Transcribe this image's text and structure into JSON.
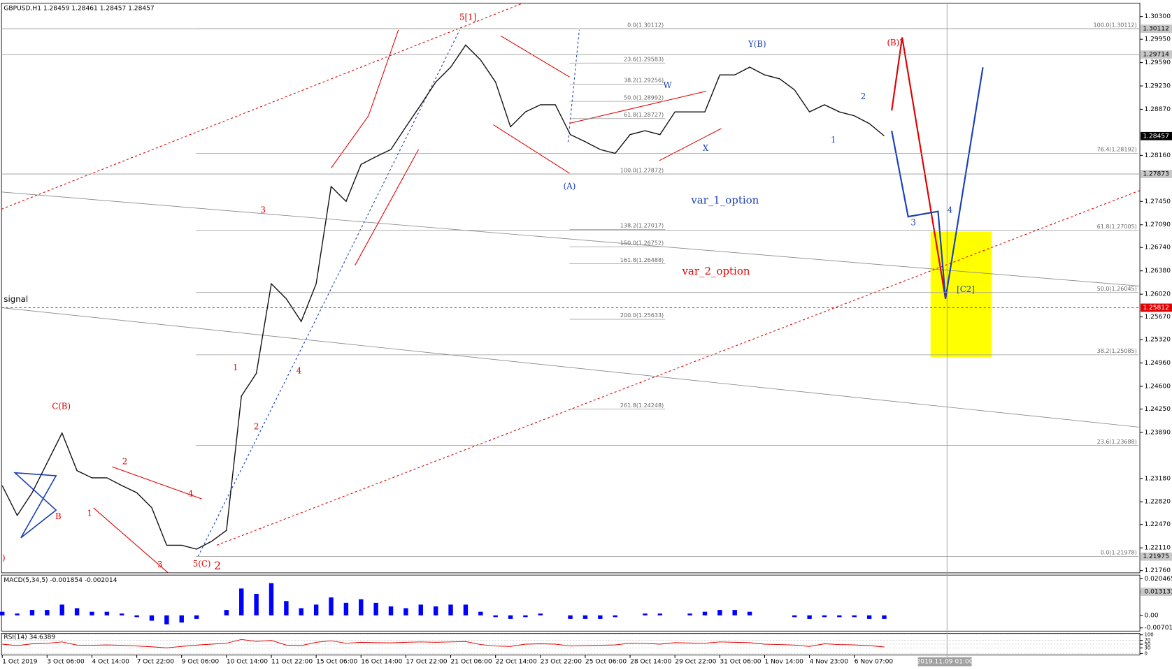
{
  "title": "GBPUSD,H1  1.28459 1.28461 1.28457 1.28457",
  "signal": "signal",
  "crosshair_time": "2019.11.09 01:00",
  "chart_data": [
    {
      "type": "line",
      "categories": [
        "1 Oct 2019",
        null,
        null,
        "3 Oct 06:00",
        null,
        null,
        "4 Oct 14:00",
        null,
        null,
        "7 Oct 22:00",
        null,
        null,
        "9 Oct 06:00",
        null,
        null,
        "10 Oct 14:00",
        null,
        null,
        "11 Oct 22:00",
        null,
        null,
        "15 Oct 06:00",
        null,
        null,
        "16 Oct 14:00",
        null,
        null,
        "17 Oct 22:00",
        null,
        null,
        "21 Oct 06:00",
        null,
        null,
        "22 Oct 14:00",
        null,
        null,
        "23 Oct 22:00",
        null,
        null,
        "25 Oct 06:00",
        null,
        null,
        "28 Oct 14:00",
        null,
        null,
        "29 Oct 22:00",
        null,
        null,
        "31 Oct 06:00",
        null,
        null,
        "1 Nov 14:00",
        null,
        null,
        "4 Nov 23:00",
        null,
        null,
        "6 Nov 07:00",
        null,
        null
      ],
      "series": [
        {
          "color": "#111111",
          "values": [
            1.2307,
            1.2261,
            1.2296,
            1.2342,
            1.2388,
            1.233,
            1.2319,
            1.2319,
            1.2307,
            1.2296,
            1.2273,
            1.2215,
            1.2215,
            1.2209,
            1.2221,
            1.2238,
            1.2445,
            1.248,
            1.2618,
            1.2595,
            1.256,
            1.2618,
            1.2768,
            1.2745,
            1.2802,
            1.2814,
            1.2825,
            1.286,
            1.2894,
            1.2929,
            1.2952,
            1.2986,
            1.2963,
            1.2929,
            1.286,
            1.2883,
            1.2894,
            1.2894,
            1.2848,
            1.2837,
            1.2825,
            1.2819,
            1.2848,
            1.2854,
            1.2848,
            1.2883,
            1.2883,
            1.2883,
            1.294,
            1.294,
            1.2952,
            1.294,
            1.2934,
            1.2917,
            1.2883,
            1.2894,
            1.2883,
            1.2877,
            1.2865,
            1.2846
          ]
        }
      ],
      "ylim": [
        1.21725,
        1.30496
      ],
      "yticks": [
        {
          "value": 1.303,
          "label": "1.30300"
        },
        {
          "value": 1.2995,
          "label": "1.29950"
        },
        {
          "value": 1.2959,
          "label": "1.29590"
        },
        {
          "value": 1.2923,
          "label": "1.29230"
        },
        {
          "value": 1.2887,
          "label": "1.28870"
        },
        {
          "value": 1.2816,
          "label": "1.28160"
        },
        {
          "value": 1.2745,
          "label": "1.27450"
        },
        {
          "value": 1.2709,
          "label": "1.27090"
        },
        {
          "value": 1.2674,
          "label": "1.26740"
        },
        {
          "value": 1.2638,
          "label": "1.26380"
        },
        {
          "value": 1.2602,
          "label": "1.26020"
        },
        {
          "value": 1.2567,
          "label": "1.25670"
        },
        {
          "value": 1.2532,
          "label": "1.25320"
        },
        {
          "value": 1.2496,
          "label": "1.24960"
        },
        {
          "value": 1.246,
          "label": "1.24600"
        },
        {
          "value": 1.2425,
          "label": "1.24250"
        },
        {
          "value": 1.2389,
          "label": "1.23890"
        },
        {
          "value": 1.2318,
          "label": "1.23180"
        },
        {
          "value": 1.2282,
          "label": "1.22820"
        },
        {
          "value": 1.2247,
          "label": "1.22470"
        },
        {
          "value": 1.2211,
          "label": "1.22110"
        },
        {
          "value": 1.2176,
          "label": "1.21760"
        }
      ],
      "price_markers": [
        1.30112,
        1.29714,
        1.28457,
        1.27873,
        1.25812,
        1.21975
      ],
      "fib_left": [
        {
          "label": "0.0(1.30112)",
          "price": 1.30112
        },
        {
          "label": "23.6(1.29583)",
          "price": 1.29583
        },
        {
          "label": "38.2(1.29256)",
          "price": 1.29256
        },
        {
          "label": "50.0(1.28992)",
          "price": 1.28992
        },
        {
          "label": "61.8(1.28727)",
          "price": 1.28727
        },
        {
          "label": "100.0(1.27872)",
          "price": 1.27872
        },
        {
          "label": "138.2(1.27017)",
          "price": 1.27017
        },
        {
          "label": "150.0(1.26752)",
          "price": 1.26752
        },
        {
          "label": "161.8(1.26488)",
          "price": 1.26488
        },
        {
          "label": "200.0(1.25633)",
          "price": 1.25633
        },
        {
          "label": "261.8(1.24248)",
          "price": 1.24248
        }
      ],
      "fib_right": [
        {
          "label": "100.0(1.30112)",
          "price": 1.30112
        },
        {
          "label": "76.4(1.28192)",
          "price": 1.28192
        },
        {
          "label": "61.8(1.27005)",
          "price": 1.27005
        },
        {
          "label": "50.0(1.26045)",
          "price": 1.26045
        },
        {
          "label": "38.2(1.25085)",
          "price": 1.25085
        },
        {
          "label": "23.6(1.23688)",
          "price": 1.23688
        },
        {
          "label": "0.0(1.21978)",
          "price": 1.21978
        }
      ],
      "annotations": [
        {
          "text": "5[1]",
          "color": "#e00000"
        },
        {
          "text": "(B)?",
          "color": "#e00000"
        },
        {
          "text": "Y(B)",
          "color": "#1a3fb5"
        },
        {
          "text": "W",
          "color": "#1a3fb5"
        },
        {
          "text": "X",
          "color": "#1a3fb5"
        },
        {
          "text": "(A)",
          "color": "#1a3fb5"
        },
        {
          "text": "1",
          "color": "#1a3fb5"
        },
        {
          "text": "2",
          "color": "#1a3fb5"
        },
        {
          "text": "3",
          "color": "#1a3fb5"
        },
        {
          "text": "4",
          "color": "#1a3fb5"
        },
        {
          "text": "[C2]",
          "color": "#1a3fb5"
        },
        {
          "text": "var_1_option",
          "color": "#1a3fb5"
        },
        {
          "text": "var_2_option",
          "color": "#e00000"
        },
        {
          "text": "3",
          "color": "#e00000"
        },
        {
          "text": "4",
          "color": "#e00000"
        },
        {
          "text": "1",
          "color": "#e00000"
        },
        {
          "text": "2",
          "color": "#e00000"
        },
        {
          "text": "C(B)",
          "color": "#e00000"
        },
        {
          "text": "B",
          "color": "#e00000"
        },
        {
          "text": "1",
          "color": "#e00000"
        },
        {
          "text": "2",
          "color": "#e00000"
        },
        {
          "text": "4",
          "color": "#e00000"
        },
        {
          "text": "3",
          "color": "#e00000"
        },
        {
          "text": "5(C)",
          "color": "#e00000"
        },
        {
          "text": "2",
          "color": "#e00000"
        },
        {
          "text": ")",
          "color": "#e00000"
        }
      ]
    },
    {
      "type": "bar",
      "title": "MACD(5,34,5) -0.001854 -0.002014",
      "color": "#0000ff",
      "values": [
        0.002,
        0.001,
        0.003,
        0.003,
        0.006,
        0.004,
        0.002,
        0.002,
        0.001,
        -0.001,
        -0.003,
        -0.005,
        -0.004,
        -0.002,
        0,
        0.003,
        0.015,
        0.012,
        0.018,
        0.008,
        0.004,
        0.006,
        0.01,
        0.007,
        0.009,
        0.007,
        0.005,
        0.004,
        0.006,
        0.005,
        0.006,
        0.006,
        0.002,
        -0.001,
        -0.002,
        -0.001,
        0.001,
        0,
        -0.002,
        -0.002,
        -0.002,
        -0.001,
        0,
        0.001,
        0.001,
        0,
        0.001,
        0.002,
        0.003,
        0.003,
        0.002,
        0,
        0,
        -0.001,
        -0.002,
        -0.001,
        -0.001,
        -0.001,
        -0.002,
        -0.002
      ],
      "ylim": [
        -0.0088,
        0.0225
      ],
      "yticks": [
        0.020465,
        0.013131,
        {
          "value": 0,
          "label": "0.00"
        },
        -0.007015
      ]
    },
    {
      "type": "line",
      "title": "RSI(14) 34.6389",
      "color": "#e00000",
      "values": [
        50,
        42,
        52,
        55,
        62,
        45,
        44,
        46,
        44,
        40,
        36,
        30,
        38,
        45,
        50,
        55,
        75,
        65,
        70,
        45,
        42,
        60,
        68,
        55,
        60,
        58,
        57,
        60,
        62,
        60,
        62,
        64,
        48,
        40,
        38,
        50,
        52,
        50,
        40,
        42,
        44,
        46,
        55,
        54,
        50,
        58,
        56,
        55,
        62,
        60,
        58,
        50,
        48,
        45,
        38,
        52,
        48,
        46,
        42,
        35
      ],
      "ylim": [
        0,
        100
      ],
      "yticks": [
        100,
        70,
        50,
        30,
        0
      ]
    }
  ]
}
